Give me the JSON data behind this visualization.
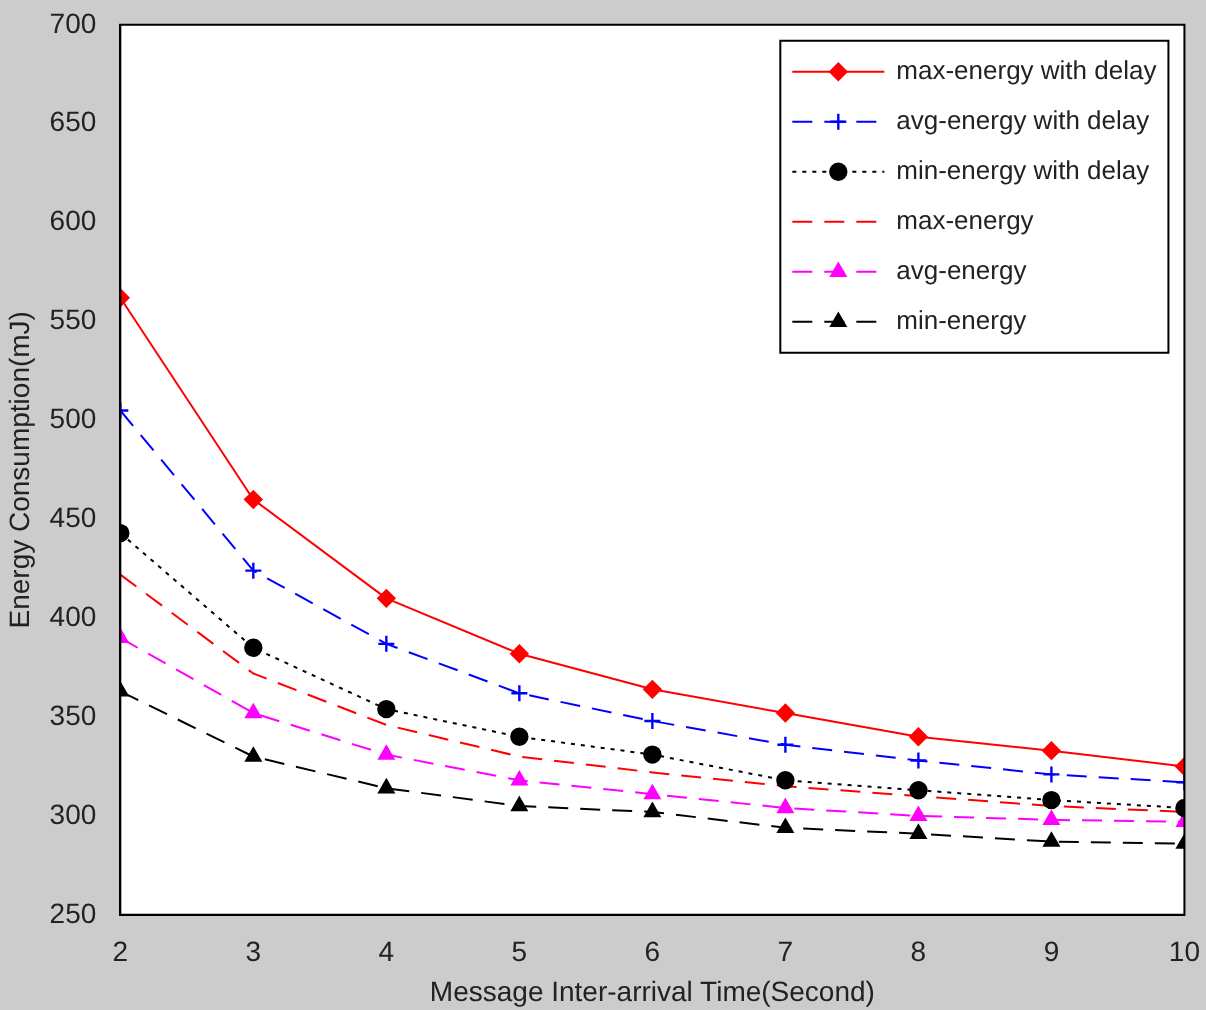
{
  "chart_data": {
    "type": "line",
    "xlabel": "Message Inter-arrival Time(Second)",
    "ylabel": "Energy Consumption(mJ)",
    "x": [
      2,
      3,
      4,
      5,
      6,
      7,
      8,
      9,
      10
    ],
    "xlim": [
      2,
      10
    ],
    "xticks": [
      2,
      3,
      4,
      5,
      6,
      7,
      8,
      9,
      10
    ],
    "ylim": [
      250,
      700
    ],
    "yticks": [
      250,
      300,
      350,
      400,
      450,
      500,
      550,
      600,
      650,
      700
    ],
    "grid": false,
    "legend": "top right",
    "series": [
      {
        "name": "max-energy with delay",
        "color": "#ff0000",
        "marker": "diamond",
        "line_style": "solid",
        "values": [
          562,
          460,
          410,
          382,
          364,
          352,
          340,
          333,
          325
        ]
      },
      {
        "name": "avg-energy with delay",
        "color": "#0000ff",
        "marker": "cross",
        "line_style": "dashed",
        "values": [
          505,
          424,
          387,
          362,
          348,
          336,
          328,
          321,
          317
        ]
      },
      {
        "name": "min-energy with delay",
        "color": "#000000",
        "marker": "circle",
        "line_style": "dotted",
        "values": [
          443,
          385,
          354,
          340,
          331,
          318,
          313,
          308,
          304
        ]
      },
      {
        "name": "max-energy",
        "color": "#ff0000",
        "marker": "none",
        "line_style": "dashed",
        "values": [
          422,
          372,
          346,
          330,
          322,
          315,
          310,
          305,
          302
        ]
      },
      {
        "name": "avg-energy",
        "color": "#ff00ff",
        "marker": "triangle",
        "line_style": "dashed",
        "values": [
          390,
          352,
          331,
          318,
          311,
          304,
          300,
          298,
          297
        ]
      },
      {
        "name": "min-energy",
        "color": "#000000",
        "marker": "triangle",
        "line_style": "dashed",
        "values": [
          363,
          330,
          314,
          305,
          302,
          294,
          291,
          287,
          286
        ]
      }
    ]
  }
}
